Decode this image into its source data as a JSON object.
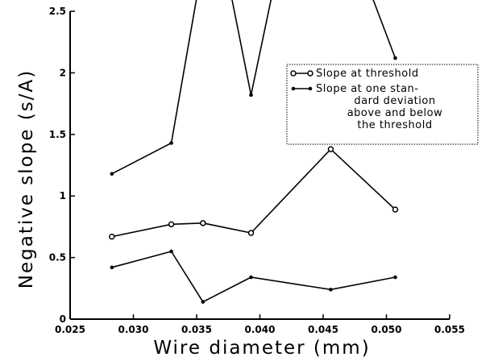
{
  "chart_data": {
    "type": "line",
    "xlabel": "Wire diameter (mm)",
    "ylabel": "Negative slope (s/A)",
    "xlim": [
      0.025,
      0.055
    ],
    "ylim": [
      0,
      2.5
    ],
    "xticks": [
      "0.025",
      "0.030",
      "0.035",
      "0.040",
      "0.045",
      "0.050",
      "0.055"
    ],
    "yticks": [
      "0",
      "0.5",
      "1",
      "1.5",
      "2",
      "2.5"
    ],
    "x": [
      0.0283,
      0.033,
      0.0355,
      0.0393,
      0.0456,
      0.0507
    ],
    "legend": {
      "placement": "top-right",
      "entries": [
        {
          "marker": "circle",
          "lines": [
            "Slope at threshold"
          ]
        },
        {
          "marker": "dot",
          "lines": [
            "Slope at one stan-",
            "dard deviation",
            "above and below",
            "the threshold"
          ]
        }
      ]
    },
    "series": [
      {
        "marker": "circle",
        "legend_index": 0,
        "points": [
          [
            0.0283,
            0.67
          ],
          [
            0.033,
            0.77
          ],
          [
            0.0355,
            0.78
          ],
          [
            0.0393,
            0.7
          ],
          [
            0.0456,
            1.38
          ],
          [
            0.0507,
            0.89
          ]
        ]
      },
      {
        "marker": "dot",
        "legend_index": 1,
        "points": [
          [
            0.0283,
            1.18
          ],
          [
            0.033,
            1.43
          ],
          [
            0.0355,
            2.9
          ]
        ]
      },
      {
        "marker": "dot",
        "legend_index": 1,
        "points": [
          [
            0.0374,
            2.8
          ],
          [
            0.0393,
            1.82
          ],
          [
            0.0413,
            2.8
          ]
        ]
      },
      {
        "marker": "dot",
        "legend_index": 1,
        "points": [
          [
            0.0482,
            2.8
          ],
          [
            0.0507,
            2.12
          ]
        ]
      },
      {
        "marker": "dot",
        "legend_index": 1,
        "points": [
          [
            0.0283,
            0.42
          ],
          [
            0.033,
            0.55
          ],
          [
            0.0355,
            0.14
          ],
          [
            0.0393,
            0.34
          ],
          [
            0.0456,
            0.24
          ],
          [
            0.0507,
            0.34
          ]
        ]
      }
    ]
  }
}
